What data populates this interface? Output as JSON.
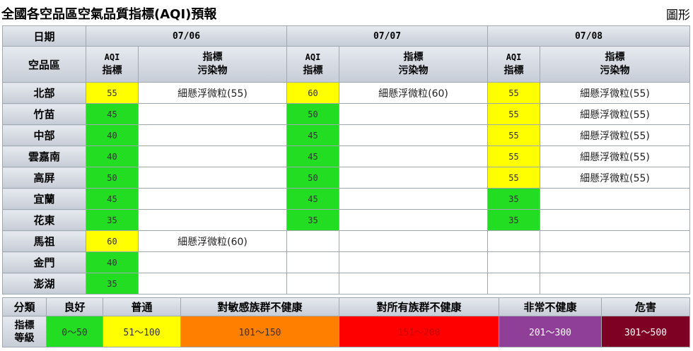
{
  "header": {
    "title": "全國各空品區空氣品質指標(AQI)預報",
    "toggle_label": "圖形"
  },
  "table": {
    "date_label": "日期",
    "region_label": "空品區",
    "aqi_label_1": "AQI",
    "aqi_label_2": "指標",
    "pollutant_label_1": "指標",
    "pollutant_label_2": "污染物",
    "dates": [
      "07/06",
      "07/07",
      "07/08"
    ],
    "rows": [
      {
        "region": "北部",
        "d1_aqi": "55",
        "d1_pol": "細懸浮微粒(55)",
        "d2_aqi": "60",
        "d2_pol": "細懸浮微粒(60)",
        "d3_aqi": "55",
        "d3_pol": "細懸浮微粒(55)"
      },
      {
        "region": "竹苗",
        "d1_aqi": "45",
        "d1_pol": "",
        "d2_aqi": "50",
        "d2_pol": "",
        "d3_aqi": "55",
        "d3_pol": "細懸浮微粒(55)"
      },
      {
        "region": "中部",
        "d1_aqi": "40",
        "d1_pol": "",
        "d2_aqi": "45",
        "d2_pol": "",
        "d3_aqi": "55",
        "d3_pol": "細懸浮微粒(55)"
      },
      {
        "region": "雲嘉南",
        "d1_aqi": "40",
        "d1_pol": "",
        "d2_aqi": "45",
        "d2_pol": "",
        "d3_aqi": "55",
        "d3_pol": "細懸浮微粒(55)"
      },
      {
        "region": "高屏",
        "d1_aqi": "50",
        "d1_pol": "",
        "d2_aqi": "50",
        "d2_pol": "",
        "d3_aqi": "55",
        "d3_pol": "細懸浮微粒(55)"
      },
      {
        "region": "宜蘭",
        "d1_aqi": "45",
        "d1_pol": "",
        "d2_aqi": "45",
        "d2_pol": "",
        "d3_aqi": "35",
        "d3_pol": ""
      },
      {
        "region": "花東",
        "d1_aqi": "35",
        "d1_pol": "",
        "d2_aqi": "35",
        "d2_pol": "",
        "d3_aqi": "35",
        "d3_pol": ""
      },
      {
        "region": "馬祖",
        "d1_aqi": "60",
        "d1_pol": "細懸浮微粒(60)",
        "d2_aqi": "",
        "d2_pol": "",
        "d3_aqi": "",
        "d3_pol": ""
      },
      {
        "region": "金門",
        "d1_aqi": "40",
        "d1_pol": "",
        "d2_aqi": "",
        "d2_pol": "",
        "d3_aqi": "",
        "d3_pol": ""
      },
      {
        "region": "澎湖",
        "d1_aqi": "35",
        "d1_pol": "",
        "d2_aqi": "",
        "d2_pol": "",
        "d3_aqi": "",
        "d3_pol": ""
      }
    ]
  },
  "legend": {
    "category_label": "分類",
    "level_label_1": "指標",
    "level_label_2": "等級",
    "levels": [
      {
        "name": "良好",
        "range": "0～50",
        "color": "#22dd22",
        "text_color": "#333333"
      },
      {
        "name": "普通",
        "range": "51～100",
        "color": "#ffff00",
        "text_color": "#333333"
      },
      {
        "name": "對敏感族群不健康",
        "range": "101～150",
        "color": "#ff7f00",
        "text_color": "#333333"
      },
      {
        "name": "對所有族群不健康",
        "range": "151～200",
        "color": "#ff0000",
        "text_color": "#cc0000"
      },
      {
        "name": "非常不健康",
        "range": "201～300",
        "color": "#8f3f97",
        "text_color": "#ffffff"
      },
      {
        "name": "危害",
        "range": "301～500",
        "color": "#7e0023",
        "text_color": "#ffffff"
      }
    ]
  }
}
